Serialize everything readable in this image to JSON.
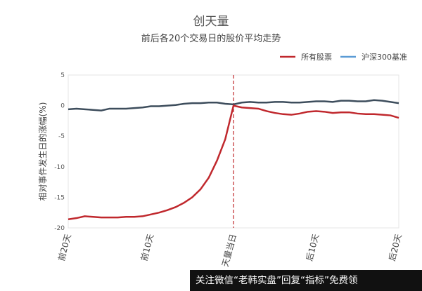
{
  "chart_data": {
    "type": "line",
    "title": "创天量",
    "subtitle": "前后各20个交易日的股价平均走势",
    "ylabel": "相对事件发生日的涨幅(%)",
    "ylim": [
      -20,
      5
    ],
    "yticks": [
      5,
      0,
      -5,
      -10,
      -15,
      -20
    ],
    "xticks": [
      {
        "index": 0,
        "label": "前20天"
      },
      {
        "index": 10,
        "label": "前10天"
      },
      {
        "index": 20,
        "label": "天量当日"
      },
      {
        "index": 30,
        "label": "后10天"
      },
      {
        "index": 40,
        "label": "后20天"
      }
    ],
    "event_index": 20,
    "legend_position": "top-right",
    "series": [
      {
        "name": "所有股票",
        "color": "#c0282d",
        "legend_color": "#c0282d",
        "values": [
          -18.6,
          -18.4,
          -18.1,
          -18.2,
          -18.3,
          -18.3,
          -18.3,
          -18.2,
          -18.2,
          -18.1,
          -17.8,
          -17.5,
          -17.1,
          -16.6,
          -15.9,
          -15.0,
          -13.7,
          -11.8,
          -9.0,
          -5.5,
          0,
          -0.3,
          -0.4,
          -0.5,
          -0.9,
          -1.2,
          -1.4,
          -1.5,
          -1.3,
          -1.0,
          -0.9,
          -1.0,
          -1.2,
          -1.1,
          -1.1,
          -1.3,
          -1.4,
          -1.4,
          -1.5,
          -1.6,
          -2.0
        ]
      },
      {
        "name": "沪深300基准",
        "color": "#3d4d5c",
        "legend_color": "#5b9bd5",
        "values": [
          -0.6,
          -0.5,
          -0.6,
          -0.7,
          -0.8,
          -0.5,
          -0.5,
          -0.5,
          -0.4,
          -0.3,
          -0.1,
          -0.1,
          0,
          0.1,
          0.3,
          0.4,
          0.4,
          0.5,
          0.5,
          0.3,
          0.2,
          0.5,
          0.6,
          0.5,
          0.5,
          0.6,
          0.6,
          0.5,
          0.5,
          0.6,
          0.7,
          0.7,
          0.6,
          0.8,
          0.8,
          0.7,
          0.7,
          0.9,
          0.8,
          0.6,
          0.4
        ]
      }
    ]
  },
  "overlay_text": "关注微信“老韩实盘”回复“指标”免费领"
}
